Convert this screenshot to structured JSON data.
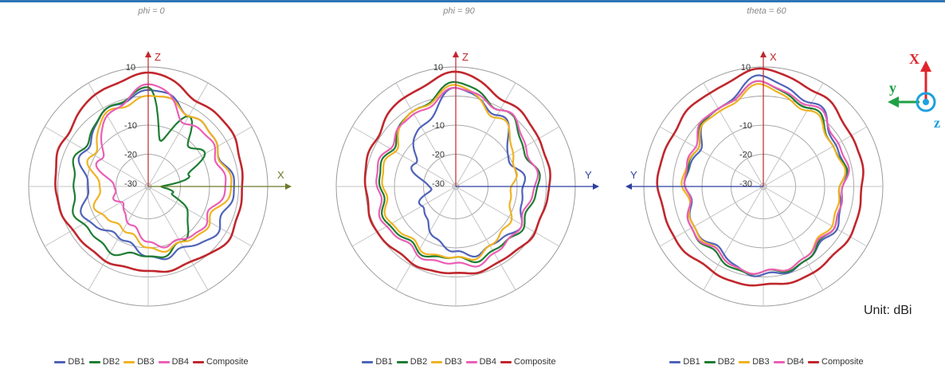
{
  "unit_label": "Unit: dBi",
  "colors": {
    "DB1": "#4f63b8",
    "DB2": "#1e7d32",
    "DB3": "#f0b323",
    "DB4": "#ea5fb6",
    "Composite": "#c0272d",
    "accent": "#2e75b6"
  },
  "axes_icon": {
    "x": "X",
    "y": "y",
    "z": "z",
    "x_color": "#e0242b",
    "y_color": "#1ea045",
    "z_color": "#1ea1de"
  },
  "chart_data": [
    {
      "type": "polar-line",
      "title": "phi = 0",
      "radial_ticks": [
        "10",
        "-10",
        "-20",
        "-30"
      ],
      "radial_range": [
        -30,
        10
      ],
      "axis_labels": {
        "up": "Z",
        "right": "X"
      },
      "angle_unit": "degrees (0 = up, clockwise)",
      "legend": [
        "DB1",
        "DB2",
        "DB3",
        "DB4",
        "Composite"
      ],
      "series": [
        {
          "name": "DB1",
          "angles": [
            0,
            30,
            60,
            90,
            120,
            150,
            180,
            210,
            240,
            270,
            300,
            330
          ],
          "values": [
            2,
            -2,
            -4,
            -2,
            -3,
            -6,
            -7,
            -12,
            -7,
            -10,
            -6,
            -2
          ]
        },
        {
          "name": "DB2",
          "angles": [
            0,
            15,
            30,
            45,
            60,
            75,
            90,
            105,
            120,
            150,
            180,
            210,
            240,
            270,
            300,
            330
          ],
          "values": [
            3,
            -16,
            -2,
            -12,
            -9,
            -16,
            -27,
            -22,
            -16,
            -8,
            -7,
            -6,
            -5,
            -5,
            -5,
            -2
          ]
        },
        {
          "name": "DB3",
          "angles": [
            0,
            30,
            60,
            90,
            120,
            150,
            180,
            210,
            240,
            270,
            300,
            330
          ],
          "values": [
            0,
            -2,
            -4,
            -3,
            -7,
            -8,
            -10,
            -15,
            -12,
            -14,
            -9,
            -3
          ]
        },
        {
          "name": "DB4",
          "angles": [
            0,
            30,
            60,
            90,
            120,
            150,
            180,
            210,
            240,
            270,
            300,
            330
          ],
          "values": [
            4,
            -5,
            -5,
            -5,
            -8,
            -9,
            -12,
            -18,
            -20,
            -19,
            -12,
            -4
          ]
        },
        {
          "name": "Composite",
          "angles": [
            0,
            30,
            60,
            90,
            120,
            150,
            180,
            210,
            240,
            270,
            300,
            330
          ],
          "values": [
            8,
            3,
            3,
            1,
            2,
            -1,
            -2,
            -2,
            -1,
            1,
            2,
            5
          ]
        }
      ]
    },
    {
      "type": "polar-line",
      "title": "phi = 90",
      "radial_ticks": [
        "10",
        "-10",
        "-20",
        "-30"
      ],
      "radial_range": [
        -30,
        10
      ],
      "axis_labels": {
        "up": "Z",
        "right": "Y"
      },
      "angle_unit": "degrees (0 = up, clockwise)",
      "legend": [
        "DB1",
        "DB2",
        "DB3",
        "DB4",
        "Composite"
      ],
      "series": [
        {
          "name": "DB1",
          "angles": [
            0,
            30,
            60,
            90,
            120,
            150,
            180,
            210,
            240,
            270,
            300,
            330
          ],
          "values": [
            2,
            -2,
            -10,
            -8,
            -6,
            -7,
            -8,
            -14,
            -18,
            -22,
            -14,
            -8
          ]
        },
        {
          "name": "DB2",
          "angles": [
            0,
            30,
            60,
            90,
            120,
            150,
            180,
            210,
            240,
            270,
            300,
            330
          ],
          "values": [
            4,
            0,
            -4,
            -3,
            -5,
            -5,
            -6,
            -6,
            -5,
            -5,
            -5,
            -2
          ]
        },
        {
          "name": "DB3",
          "angles": [
            0,
            30,
            60,
            90,
            120,
            150,
            180,
            210,
            240,
            270,
            300,
            330
          ],
          "values": [
            3,
            -3,
            -8,
            -12,
            -10,
            -7,
            -6,
            -7,
            -6,
            -6,
            -6,
            -2
          ]
        },
        {
          "name": "DB4",
          "angles": [
            0,
            30,
            60,
            90,
            120,
            150,
            180,
            210,
            240,
            270,
            300,
            330
          ],
          "values": [
            2,
            0,
            -3,
            -4,
            -6,
            -4,
            -4,
            -5,
            -4,
            -4,
            -4,
            -3
          ]
        },
        {
          "name": "Composite",
          "angles": [
            0,
            30,
            60,
            90,
            120,
            150,
            180,
            210,
            240,
            270,
            300,
            330
          ],
          "values": [
            8,
            3,
            2,
            1,
            0,
            -1,
            -1,
            -1,
            0,
            0,
            1,
            4
          ]
        }
      ]
    },
    {
      "type": "polar-line",
      "title": "theta = 60",
      "radial_ticks": [
        "10",
        "-10",
        "-20",
        "-30"
      ],
      "radial_range": [
        -30,
        10
      ],
      "axis_labels": {
        "up": "X",
        "left": "Y"
      },
      "angle_unit": "degrees (0 = up, clockwise)",
      "legend": [
        "DB1",
        "DB2",
        "DB3",
        "DB4",
        "Composite"
      ],
      "series": [
        {
          "name": "DB1",
          "angles": [
            0,
            30,
            60,
            90,
            120,
            150,
            180,
            210,
            240,
            270,
            300,
            330
          ],
          "values": [
            6,
            2,
            -2,
            -4,
            -3,
            -2,
            0,
            -4,
            -4,
            -5,
            -5,
            0
          ]
        },
        {
          "name": "DB2",
          "angles": [
            0,
            30,
            60,
            90,
            120,
            150,
            180,
            210,
            240,
            270,
            300,
            330
          ],
          "values": [
            4,
            0,
            -3,
            -3,
            -4,
            -2,
            -1,
            -2,
            -3,
            -5,
            -4,
            0
          ]
        },
        {
          "name": "DB3",
          "angles": [
            0,
            30,
            60,
            90,
            120,
            150,
            180,
            210,
            240,
            270,
            300,
            330
          ],
          "values": [
            3,
            -1,
            -3,
            -4,
            -5,
            -3,
            -1,
            -3,
            -4,
            -4,
            -4,
            -1
          ]
        },
        {
          "name": "DB4",
          "angles": [
            0,
            30,
            60,
            90,
            120,
            150,
            180,
            210,
            240,
            270,
            300,
            330
          ],
          "values": [
            4,
            1,
            -1,
            -3,
            -4,
            -3,
            -1,
            -3,
            -3,
            -5,
            -3,
            0
          ]
        },
        {
          "name": "Composite",
          "angles": [
            0,
            30,
            60,
            90,
            120,
            150,
            180,
            210,
            240,
            270,
            300,
            330
          ],
          "values": [
            9,
            6,
            4,
            3,
            3,
            3,
            3,
            3,
            4,
            5,
            5,
            6
          ]
        }
      ]
    }
  ]
}
